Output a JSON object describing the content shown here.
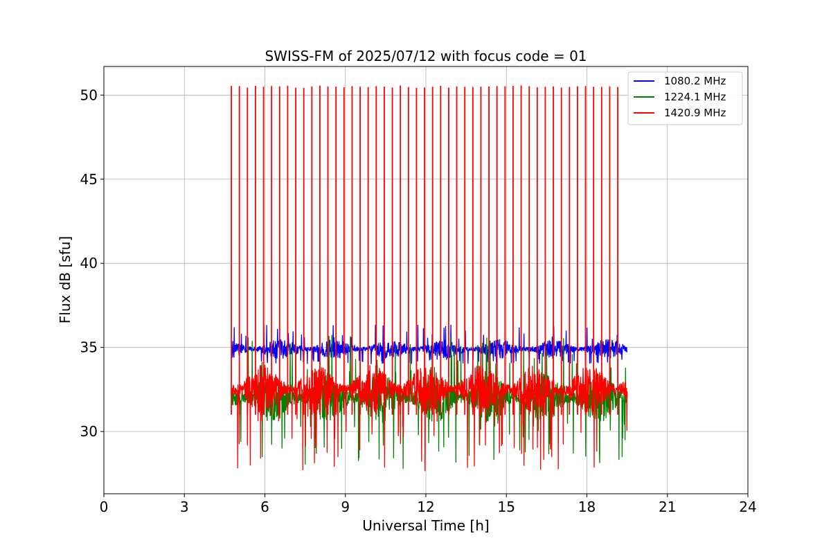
{
  "chart_data": {
    "type": "line",
    "title": "SWISS-FM of 2025/07/12 with focus code = 01",
    "xlabel": "Universal Time [h]",
    "ylabel": "Flux dB [sfu]",
    "xlim": [
      0,
      24
    ],
    "ylim": [
      26.3,
      51.7
    ],
    "xticks": [
      0,
      3,
      6,
      9,
      12,
      15,
      18,
      21,
      24
    ],
    "xtick_labels": [
      "0",
      "3",
      "6",
      "9",
      "12",
      "15",
      "18",
      "21",
      "24"
    ],
    "yticks": [
      30,
      35,
      40,
      45,
      50
    ],
    "ytick_labels": [
      "30",
      "35",
      "40",
      "45",
      "50"
    ],
    "grid": true,
    "legend_position": "top-right",
    "data_range_hours": [
      4.75,
      19.5
    ],
    "series": [
      {
        "name": "1080.2 MHz",
        "color": "#0000ff",
        "baseline_range": [
          34.3,
          35.5
        ],
        "peak_max": 36.4,
        "min": 34.0
      },
      {
        "name": "1224.1 MHz",
        "color": "#008000",
        "baseline_range": [
          30.5,
          33.5
        ],
        "peak_max": 35.8,
        "min": 27.7
      },
      {
        "name": "1420.9 MHz",
        "color": "#ff0000",
        "baseline_range": [
          31.0,
          34.0
        ],
        "spike_value": 50.5,
        "spike_interval_h": 0.3,
        "min": 27.5
      }
    ]
  }
}
